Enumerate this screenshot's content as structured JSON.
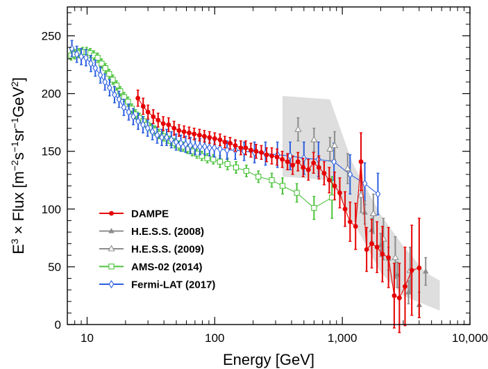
{
  "chart_data": {
    "type": "scatter",
    "title": "",
    "xlabel": "Energy [GeV]",
    "ylabel_parts": [
      "E",
      "3",
      " × Flux [m",
      "−2",
      "s",
      "−1",
      "sr",
      "−1",
      "GeV",
      "2",
      "]"
    ],
    "x_scale": "log",
    "xlim": [
      7,
      10000
    ],
    "ylim": [
      0,
      275
    ],
    "x_ticks": [
      10,
      100,
      1000,
      10000
    ],
    "x_tick_labels": [
      "10",
      "100",
      "1,000",
      "10,000"
    ],
    "y_ticks": [
      0,
      50,
      100,
      150,
      200,
      250
    ],
    "y_tick_labels": [
      "0",
      "50",
      "100",
      "150",
      "200",
      "250"
    ],
    "grid": false,
    "legend_position": "lower-left",
    "band": {
      "name": "H.E.S.S. systematic band",
      "upper": [
        [
          340,
          198
        ],
        [
          800,
          195
        ],
        [
          1200,
          140
        ],
        [
          2000,
          95
        ],
        [
          3000,
          68
        ],
        [
          4500,
          45
        ],
        [
          5800,
          38
        ]
      ],
      "lower": [
        [
          340,
          128
        ],
        [
          800,
          125
        ],
        [
          1200,
          90
        ],
        [
          2000,
          45
        ],
        [
          3000,
          25
        ],
        [
          4500,
          17
        ],
        [
          5800,
          12
        ]
      ],
      "color": "#dedede"
    },
    "series": [
      {
        "name": "AMS-02 (2014)",
        "color": "#4cc23c",
        "marker": "open-square",
        "line": true,
        "points": [
          [
            7.5,
            233,
            4
          ],
          [
            8.0,
            234,
            4
          ],
          [
            8.6,
            235,
            4
          ],
          [
            9.2,
            236,
            4
          ],
          [
            9.9,
            236,
            4
          ],
          [
            10.6,
            235,
            4
          ],
          [
            11.3,
            233,
            4
          ],
          [
            12.1,
            231,
            4
          ],
          [
            13.0,
            226,
            4
          ],
          [
            13.9,
            222,
            4
          ],
          [
            14.9,
            217,
            4
          ],
          [
            15.9,
            212,
            4
          ],
          [
            17.0,
            207,
            4
          ],
          [
            18.2,
            202,
            4
          ],
          [
            19.5,
            197,
            4
          ],
          [
            20.9,
            193,
            4
          ],
          [
            22.4,
            187,
            4
          ],
          [
            24.0,
            182,
            4
          ],
          [
            25.7,
            179,
            4
          ],
          [
            27.6,
            176,
            4
          ],
          [
            29.6,
            173,
            4
          ],
          [
            31.7,
            170,
            4
          ],
          [
            34.0,
            168,
            4
          ],
          [
            36.5,
            165,
            4
          ],
          [
            39.2,
            163,
            4
          ],
          [
            42.1,
            161,
            4
          ],
          [
            45.2,
            159,
            4
          ],
          [
            48.6,
            157,
            4
          ],
          [
            52.4,
            155,
            4
          ],
          [
            56.6,
            154,
            4
          ],
          [
            61.3,
            152,
            4
          ],
          [
            66.5,
            150,
            4
          ],
          [
            72.4,
            148,
            4
          ],
          [
            79.3,
            146,
            4
          ],
          [
            87.5,
            144,
            4
          ],
          [
            97.5,
            143,
            4
          ],
          [
            110,
            141,
            5
          ],
          [
            126,
            139,
            5
          ],
          [
            147,
            136,
            5
          ],
          [
            177,
            133,
            5
          ],
          [
            220,
            128,
            5
          ],
          [
            280,
            125,
            6
          ],
          [
            340,
            120,
            7
          ],
          [
            440,
            114,
            8
          ],
          [
            600,
            101,
            10
          ],
          [
            830,
            110,
            18
          ]
        ]
      },
      {
        "name": "Fermi-LAT (2017)",
        "color": "#2b5fe0",
        "marker": "open-diamond",
        "line": true,
        "points": [
          [
            7.6,
            239,
            7
          ],
          [
            8.3,
            234,
            7
          ],
          [
            9.0,
            232,
            7
          ],
          [
            9.8,
            231,
            7
          ],
          [
            10.7,
            226,
            7
          ],
          [
            11.6,
            222,
            7
          ],
          [
            12.7,
            216,
            7
          ],
          [
            13.8,
            210,
            7
          ],
          [
            15.0,
            205,
            7
          ],
          [
            16.4,
            199,
            7
          ],
          [
            17.8,
            195,
            7
          ],
          [
            19.4,
            188,
            7
          ],
          [
            21.2,
            184,
            7
          ],
          [
            23.0,
            180,
            7
          ],
          [
            25.1,
            176,
            7
          ],
          [
            27.4,
            173,
            7
          ],
          [
            29.8,
            170,
            7
          ],
          [
            32.5,
            167,
            7
          ],
          [
            35.4,
            164,
            7
          ],
          [
            38.5,
            162,
            7
          ],
          [
            42.0,
            162,
            7
          ],
          [
            45.7,
            160,
            7
          ],
          [
            49.8,
            158,
            7
          ],
          [
            54.3,
            157,
            7
          ],
          [
            59.2,
            156,
            7
          ],
          [
            64.5,
            155,
            7
          ],
          [
            70.3,
            154,
            7
          ],
          [
            76.6,
            154,
            7
          ],
          [
            83.5,
            154,
            7
          ],
          [
            91.0,
            153,
            7
          ],
          [
            99.2,
            153,
            8
          ],
          [
            110,
            152,
            8
          ],
          [
            125,
            151,
            8
          ],
          [
            145,
            151,
            8
          ],
          [
            170,
            150,
            8
          ],
          [
            205,
            149,
            9
          ],
          [
            250,
            148,
            10
          ],
          [
            310,
            147,
            11
          ],
          [
            390,
            146,
            12
          ],
          [
            500,
            144,
            14
          ],
          [
            650,
            143,
            15
          ],
          [
            860,
            141,
            16
          ],
          [
            1150,
            130,
            17
          ],
          [
            1500,
            122,
            18
          ],
          [
            1900,
            113,
            18
          ]
        ]
      },
      {
        "name": "H.E.S.S. (2008)",
        "color": "#8c8c8c",
        "marker": "filled-triangle",
        "line": false,
        "points": [
          [
            1500,
            97,
            10
          ],
          [
            1700,
            82,
            10
          ],
          [
            2000,
            69,
            10
          ],
          [
            2300,
            57,
            10
          ],
          [
            2700,
            43,
            11
          ],
          [
            3300,
            28,
            10
          ],
          [
            4000,
            17,
            11
          ],
          [
            4500,
            46,
            12
          ]
        ]
      },
      {
        "name": "H.E.S.S. (2009)",
        "color": "#8c8c8c",
        "marker": "open-triangle",
        "line": false,
        "points": [
          [
            450,
            169,
            10
          ],
          [
            600,
            160,
            10
          ],
          [
            800,
            152,
            10
          ],
          [
            870,
            155,
            12
          ],
          [
            1100,
            135,
            13
          ],
          [
            1400,
            112,
            15
          ],
          [
            1750,
            96,
            17
          ],
          [
            2100,
            74,
            18
          ],
          [
            2600,
            58,
            18
          ],
          [
            3400,
            47,
            20
          ]
        ]
      },
      {
        "name": "DAMPE",
        "color": "#e60000",
        "marker": "filled-circle",
        "line": true,
        "points": [
          [
            25,
            196,
            7
          ],
          [
            27.5,
            189,
            7
          ],
          [
            30,
            184,
            6
          ],
          [
            33,
            180,
            6
          ],
          [
            36,
            177,
            6
          ],
          [
            39.5,
            174,
            6
          ],
          [
            43.5,
            173,
            6
          ],
          [
            48,
            170,
            6
          ],
          [
            52.5,
            168,
            5
          ],
          [
            57.5,
            167,
            5
          ],
          [
            63,
            166,
            5
          ],
          [
            69,
            165,
            5
          ],
          [
            76,
            164,
            5
          ],
          [
            83,
            163,
            5
          ],
          [
            91,
            162,
            5
          ],
          [
            100,
            161,
            5
          ],
          [
            110,
            160,
            5
          ],
          [
            120,
            158,
            5
          ],
          [
            132,
            157,
            5
          ],
          [
            145,
            155,
            5
          ],
          [
            160,
            153,
            6
          ],
          [
            175,
            153,
            6
          ],
          [
            192,
            151,
            6
          ],
          [
            211,
            150,
            6
          ],
          [
            232,
            149,
            6
          ],
          [
            255,
            147,
            6
          ],
          [
            280,
            146,
            7
          ],
          [
            308,
            145,
            7
          ],
          [
            338,
            143,
            7
          ],
          [
            372,
            141,
            7
          ],
          [
            408,
            138,
            8
          ],
          [
            449,
            141,
            8
          ],
          [
            493,
            136,
            8
          ],
          [
            542,
            134,
            9
          ],
          [
            595,
            140,
            9
          ],
          [
            655,
            136,
            10
          ],
          [
            720,
            131,
            10
          ],
          [
            790,
            125,
            11
          ],
          [
            870,
            120,
            12
          ],
          [
            955,
            114,
            13
          ],
          [
            1050,
            100,
            15
          ],
          [
            1150,
            89,
            17
          ],
          [
            1270,
            85,
            20
          ],
          [
            1400,
            141,
            25
          ],
          [
            1550,
            65,
            19
          ],
          [
            1700,
            70,
            21
          ],
          [
            1870,
            67,
            22
          ],
          [
            2060,
            61,
            24
          ],
          [
            2300,
            58,
            26
          ],
          [
            2550,
            25,
            28
          ],
          [
            2800,
            23,
            30
          ],
          [
            3100,
            33,
            34
          ],
          [
            3500,
            47,
            39
          ],
          [
            4000,
            49,
            43
          ]
        ]
      }
    ],
    "legend_order": [
      "DAMPE",
      "H.E.S.S. (2008)",
      "H.E.S.S. (2009)",
      "AMS-02 (2014)",
      "Fermi-LAT (2017)"
    ]
  }
}
